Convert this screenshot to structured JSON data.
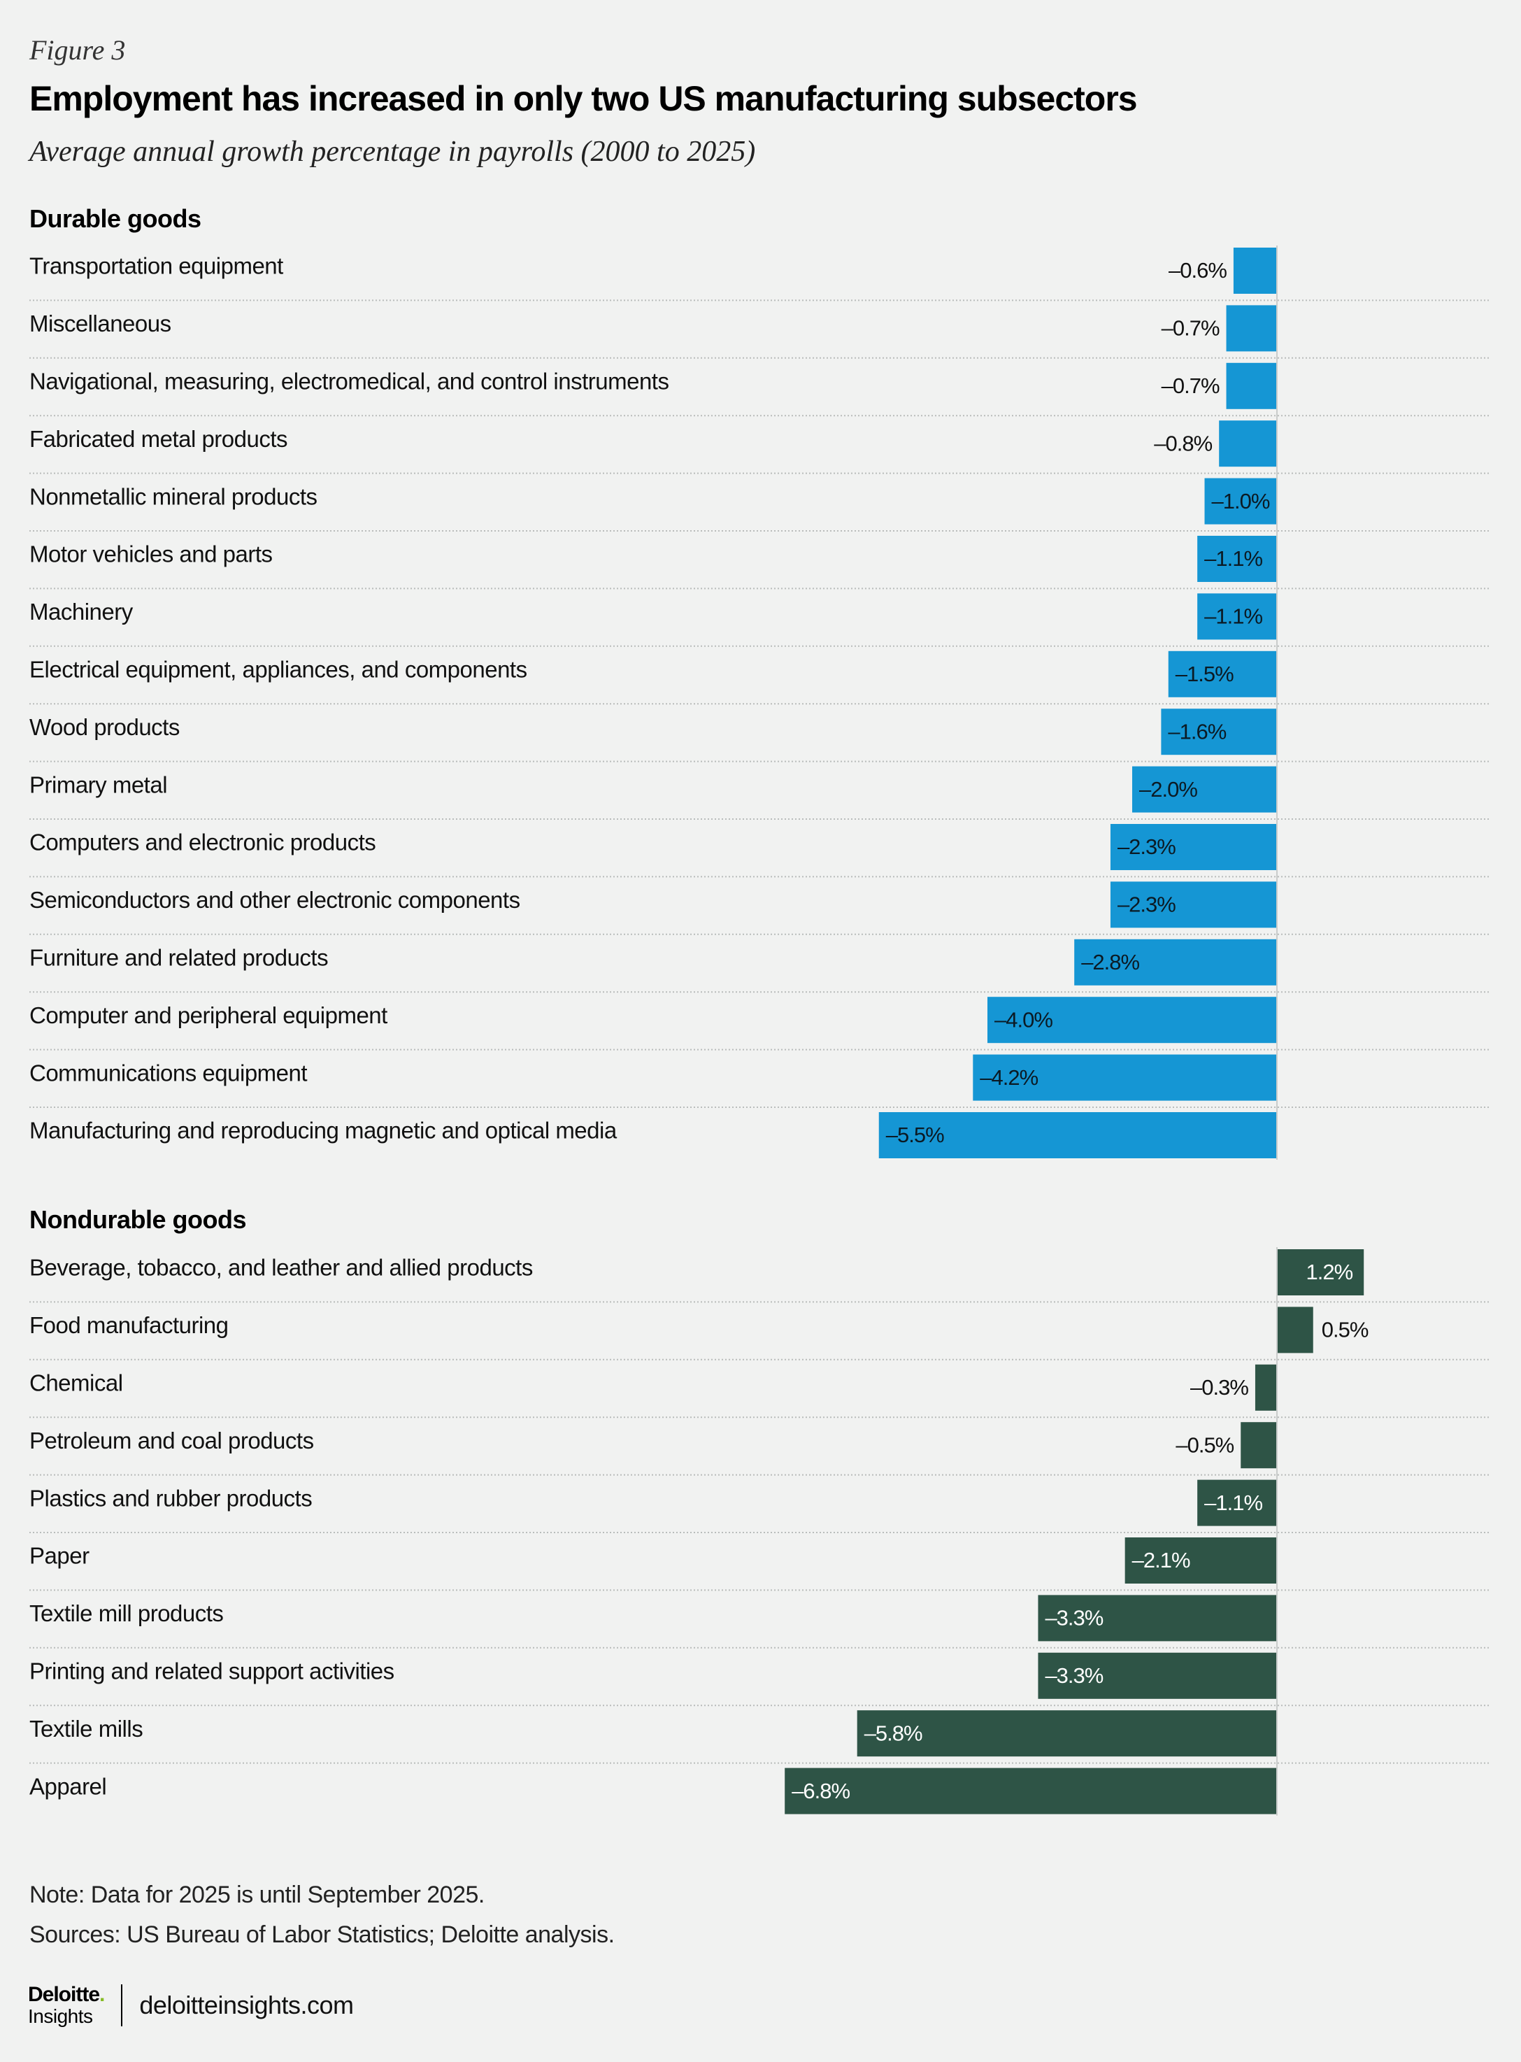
{
  "figure_label": "Figure 3",
  "title": "Employment has increased in only two US manufacturing subsectors",
  "subtitle": "Average annual growth percentage in payrolls (2000 to 2025)",
  "colors": {
    "durable": "#1596d4",
    "nondurable": "#2e5446",
    "background": "#f1f2f1"
  },
  "chart_data": [
    {
      "type": "bar",
      "orientation": "horizontal",
      "title": "Durable goods",
      "unit": "%",
      "categories": [
        "Transportation equipment",
        "Miscellaneous",
        "Navigational, measuring, electromedical, and control instruments",
        "Fabricated metal products",
        "Nonmetallic mineral products",
        "Motor vehicles and parts",
        "Machinery",
        "Electrical equipment, appliances, and components",
        "Wood products",
        "Primary metal",
        "Computers and electronic products",
        "Semiconductors and other electronic components",
        "Furniture and related products",
        "Computer and peripheral equipment",
        "Communications equipment",
        "Manufacturing and reproducing magnetic and optical media"
      ],
      "values": [
        -0.6,
        -0.7,
        -0.7,
        -0.8,
        -1.0,
        -1.1,
        -1.1,
        -1.5,
        -1.6,
        -2.0,
        -2.3,
        -2.3,
        -2.8,
        -4.0,
        -4.2,
        -5.5
      ],
      "labels": [
        "–0.6%",
        "–0.7%",
        "–0.7%",
        "–0.8%",
        "–1.0%",
        "–1.1%",
        "–1.1%",
        "–1.5%",
        "–1.6%",
        "–2.0%",
        "–2.3%",
        "–2.3%",
        "–2.8%",
        "–4.0%",
        "–4.2%",
        "–5.5%"
      ]
    },
    {
      "type": "bar",
      "orientation": "horizontal",
      "title": "Nondurable goods",
      "unit": "%",
      "categories": [
        "Beverage, tobacco, and leather and allied products",
        "Food manufacturing",
        "Chemical",
        "Petroleum and coal products",
        "Plastics and rubber products",
        "Paper",
        "Textile mill products",
        "Printing and related support activities",
        "Textile mills",
        "Apparel"
      ],
      "values": [
        1.2,
        0.5,
        -0.3,
        -0.5,
        -1.1,
        -2.1,
        -3.3,
        -3.3,
        -5.8,
        -6.8
      ],
      "labels": [
        "1.2%",
        "0.5%",
        "–0.3%",
        "–0.5%",
        "–1.1%",
        "–2.1%",
        "–3.3%",
        "–3.3%",
        "–5.8%",
        "–6.8%"
      ]
    }
  ],
  "note": "Note: Data for 2025 is until September 2025.",
  "sources": "Sources: US Bureau of Labor Statistics; Deloitte analysis.",
  "footer": {
    "logo_top": "Deloitte",
    "logo_dot": ".",
    "logo_bottom": "Insights",
    "site": "deloitteinsights.com"
  }
}
